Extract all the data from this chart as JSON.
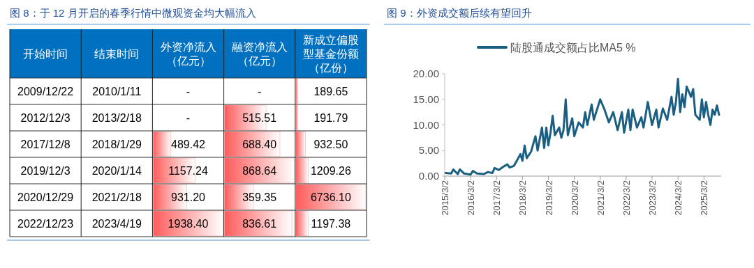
{
  "chart_data": [
    {
      "type": "heatmap",
      "title": "图 8：于 12 月开启的春季行情中微观资金均大幅流入",
      "ylabel": "开始时间",
      "y2label": "结束时间",
      "categories": [
        "外资净流入（亿元）",
        "融资净流入（亿元）",
        "新成立偏股型基金份额（亿份）"
      ],
      "y_categories": [
        "2009/12/22",
        "2012/12/3",
        "2017/12/8",
        "2019/12/3",
        "2020/12/29",
        "2022/12/23"
      ],
      "y2_categories": [
        "2010/1/11",
        "2013/2/18",
        "2018/1/29",
        "2020/1/14",
        "2021/2/18",
        "2023/4/19"
      ],
      "cells": [
        [
          null,
          null,
          189.65
        ],
        [
          null,
          515.51,
          191.79
        ],
        [
          489.42,
          688.4,
          932.5
        ],
        [
          1157.24,
          868.64,
          1209.26
        ],
        [
          931.2,
          359.35,
          6736.1
        ],
        [
          1938.4,
          836.61,
          1197.38
        ]
      ],
      "cell_labels": [
        [
          "-",
          "-",
          "189.65"
        ],
        [
          "-",
          "515.51",
          "191.79"
        ],
        [
          "489.42",
          "688.40",
          "932.50"
        ],
        [
          "1157.24",
          "868.64",
          "1209.26"
        ],
        [
          "931.20",
          "359.35",
          "6736.10"
        ],
        [
          "1938.40",
          "836.61",
          "1197.38"
        ]
      ]
    },
    {
      "type": "line",
      "title": "图 9：外资成交额后续有望回升",
      "legend": "top",
      "x": [
        "2015-03-15",
        "2015-06",
        "2015-07",
        "2015-09",
        "2015-10",
        "2015-12",
        "2016-03",
        "2016-04",
        "2016-06",
        "2016-09",
        "2016-11",
        "2017-01",
        "2017-02",
        "2017-04",
        "2017-06",
        "2017-08",
        "2017-09",
        "2017-11",
        "2018-01",
        "2018-02",
        "2018-03",
        "2018-04",
        "2018-05",
        "2018-07",
        "2018-09",
        "2018-10",
        "2018-12",
        "2019-01",
        "2019-02",
        "2019-03",
        "2019-04",
        "2019-05",
        "2019-06",
        "2019-08",
        "2019-09",
        "2019-10",
        "2019-11",
        "2019-12",
        "2020-02",
        "2020-03",
        "2020-05",
        "2020-07",
        "2020-08",
        "2020-09",
        "2020-11",
        "2020-12",
        "2021-03",
        "2021-05",
        "2021-07",
        "2021-09",
        "2021-11",
        "2022-01",
        "2022-02",
        "2022-04",
        "2022-05",
        "2022-06",
        "2022-08",
        "2022-10",
        "2022-11",
        "2023-01",
        "2023-03",
        "2023-05",
        "2023-06",
        "2023-08",
        "2023-10",
        "2023-12",
        "2024-01",
        "2024-02",
        "2024-03",
        "2024-04",
        "2024-05",
        "2024-06",
        "2024-07",
        "2024-09",
        "2024-10",
        "2024-11",
        "2025-01",
        "2025-02",
        "2025-03",
        "2025-04",
        "2025-05",
        "2025-06",
        "2025-07",
        "2025-08",
        "2025-09",
        "2025-10"
      ],
      "series": [
        {
          "name": "陆股通成交额占比MA5 %",
          "color": "#1a5e82",
          "values": [
            0.6,
            0.5,
            1.3,
            0.4,
            1.3,
            0.5,
            0.3,
            1.0,
            0.5,
            0.4,
            0.8,
            0.6,
            1.6,
            1.2,
            1.8,
            2.3,
            1.7,
            2.0,
            3.5,
            4.3,
            3.0,
            6.0,
            3.5,
            4.8,
            7.8,
            5.0,
            9.5,
            5.5,
            9.5,
            6.0,
            8.5,
            11.8,
            8.0,
            9.5,
            7.5,
            9.0,
            15.0,
            8.0,
            11.3,
            7.8,
            10.5,
            9.5,
            12.5,
            10.0,
            14.0,
            11.0,
            15.0,
            13.0,
            10.5,
            12.5,
            9.0,
            12.5,
            8.5,
            13.0,
            9.0,
            13.0,
            9.5,
            11.5,
            9.5,
            14.5,
            10.0,
            13.0,
            9.5,
            13.2,
            11.0,
            15.5,
            12.0,
            14.5,
            19.0,
            12.5,
            16.0,
            13.5,
            17.5,
            15.5,
            17.0,
            12.0,
            11.0,
            15.0,
            11.5,
            14.5,
            12.0,
            10.0,
            13.0,
            12.0,
            13.8,
            12.0
          ]
        }
      ],
      "xlim": [
        "2015-03-02",
        "2025-10-31"
      ],
      "xticks": [
        {
          "value": "2015-03-02",
          "label": "2015/3/2"
        },
        {
          "value": "2016-03-02",
          "label": "2016/3/2"
        },
        {
          "value": "2017-03-02",
          "label": "2017/3/2"
        },
        {
          "value": "2018-03-02",
          "label": "2018/3/2"
        },
        {
          "value": "2019-03-02",
          "label": "2019/3/2"
        },
        {
          "value": "2020-03-02",
          "label": "2020/3/2"
        },
        {
          "value": "2021-03-02",
          "label": "2021/3/2"
        },
        {
          "value": "2022-03-02",
          "label": "2022/3/2"
        },
        {
          "value": "2023-03-02",
          "label": "2023/3/2"
        },
        {
          "value": "2024-03-02",
          "label": "2024/3/2"
        },
        {
          "value": "2025-03-02",
          "label": "2025/3/2"
        }
      ],
      "ylim": [
        0,
        20
      ],
      "yticks": [
        {
          "value": 0,
          "label": "0.00"
        },
        {
          "value": 5,
          "label": "5.00"
        },
        {
          "value": 10,
          "label": "10.00"
        },
        {
          "value": 15,
          "label": "15.00"
        },
        {
          "value": 20,
          "label": "20.00"
        }
      ]
    }
  ]
}
